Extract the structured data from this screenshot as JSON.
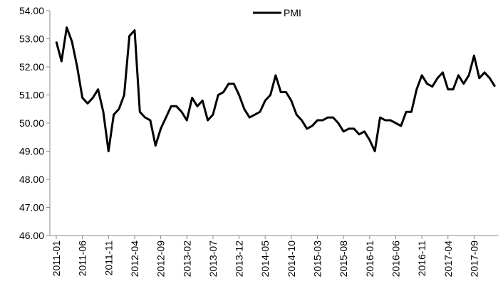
{
  "chart_data": {
    "type": "line",
    "categories": [
      "2011-01",
      null,
      null,
      null,
      null,
      "2011-06",
      null,
      null,
      null,
      null,
      "2011-11",
      null,
      null,
      null,
      null,
      "2012-04",
      null,
      null,
      null,
      null,
      "2012-09",
      null,
      null,
      null,
      null,
      "2013-02",
      null,
      null,
      null,
      null,
      "2013-07",
      null,
      null,
      null,
      null,
      "2013-12",
      null,
      null,
      null,
      null,
      "2014-05",
      null,
      null,
      null,
      null,
      "2014-10",
      null,
      null,
      null,
      null,
      "2015-03",
      null,
      null,
      null,
      null,
      "2015-08",
      null,
      null,
      null,
      null,
      "2016-01",
      null,
      null,
      null,
      null,
      "2016-06",
      null,
      null,
      null,
      null,
      "2016-11",
      null,
      null,
      null,
      null,
      "2017-04",
      null,
      null,
      null,
      null,
      "2017-09",
      null,
      null,
      null,
      null
    ],
    "series": [
      {
        "name": "PMI",
        "color": "#000000",
        "values": [
          52.9,
          52.2,
          53.4,
          52.9,
          52.0,
          50.9,
          50.7,
          50.9,
          51.2,
          50.4,
          49.0,
          50.3,
          50.5,
          51.0,
          53.1,
          53.3,
          50.4,
          50.2,
          50.1,
          49.2,
          49.8,
          50.2,
          50.6,
          50.6,
          50.4,
          50.1,
          50.9,
          50.6,
          50.8,
          50.1,
          50.3,
          51.0,
          51.1,
          51.4,
          51.4,
          51.0,
          50.5,
          50.2,
          50.3,
          50.4,
          50.8,
          51.0,
          51.7,
          51.1,
          51.1,
          50.8,
          50.3,
          50.1,
          49.8,
          49.9,
          50.1,
          50.1,
          50.2,
          50.2,
          50.0,
          49.7,
          49.8,
          49.8,
          49.6,
          49.7,
          49.4,
          49.0,
          50.2,
          50.1,
          50.1,
          50.0,
          49.9,
          50.4,
          50.4,
          51.2,
          51.7,
          51.4,
          51.3,
          51.6,
          51.8,
          51.2,
          51.2,
          51.7,
          51.4,
          51.7,
          52.4,
          51.6,
          51.8,
          51.6,
          51.3
        ]
      }
    ],
    "ylim": [
      46,
      54
    ],
    "yticks": [
      {
        "value": 46,
        "label": "46.00"
      },
      {
        "value": 47,
        "label": "47.00"
      },
      {
        "value": 48,
        "label": "48.00"
      },
      {
        "value": 49,
        "label": "49.00"
      },
      {
        "value": 50,
        "label": "50.00"
      },
      {
        "value": 51,
        "label": "51.00"
      },
      {
        "value": 52,
        "label": "52.00"
      },
      {
        "value": 53,
        "label": "53.00"
      },
      {
        "value": 54,
        "label": "54.00"
      }
    ],
    "grid": false,
    "legend": "top"
  }
}
